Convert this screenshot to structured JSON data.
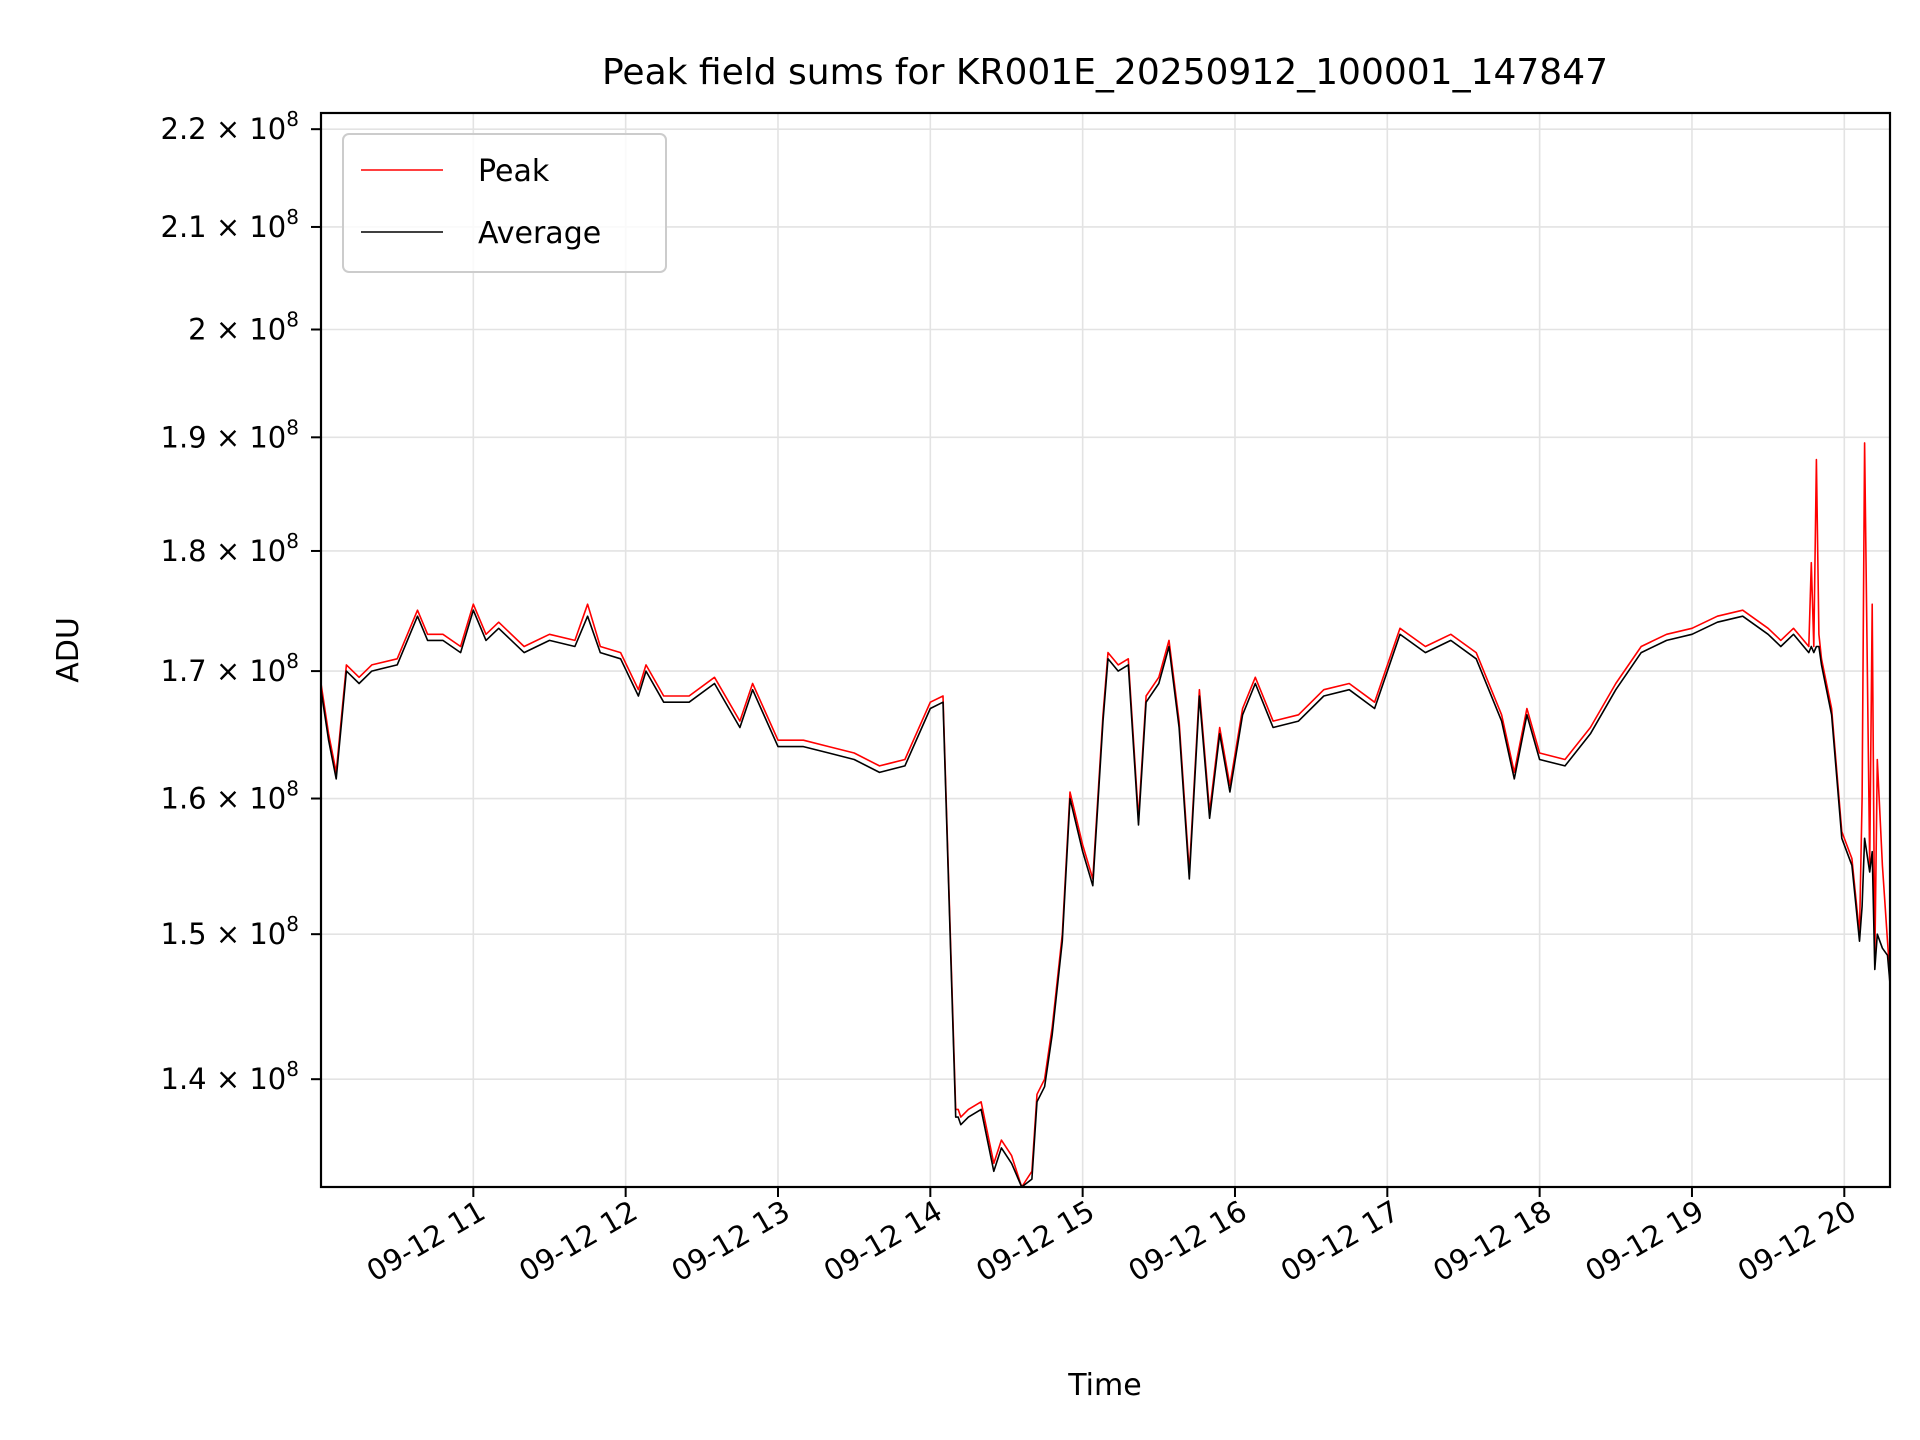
{
  "chart_data": {
    "type": "line",
    "title": "Peak field sums for KR001E_20250912_100001_147847",
    "xlabel": "Time",
    "ylabel": "ADU",
    "y_scale": "log",
    "grid": true,
    "legend_position": "top-left",
    "xlim": [
      "2025-09-12 10:00",
      "2025-09-12 20:18"
    ],
    "ylim": [
      133000000,
      221700000
    ],
    "x_ticks": [
      {
        "label": "09-12 11",
        "value": "2025-09-12 11:00"
      },
      {
        "label": "09-12 12",
        "value": "2025-09-12 12:00"
      },
      {
        "label": "09-12 13",
        "value": "2025-09-12 13:00"
      },
      {
        "label": "09-12 14",
        "value": "2025-09-12 14:00"
      },
      {
        "label": "09-12 15",
        "value": "2025-09-12 15:00"
      },
      {
        "label": "09-12 16",
        "value": "2025-09-12 16:00"
      },
      {
        "label": "09-12 17",
        "value": "2025-09-12 17:00"
      },
      {
        "label": "09-12 18",
        "value": "2025-09-12 18:00"
      },
      {
        "label": "09-12 19",
        "value": "2025-09-12 19:00"
      },
      {
        "label": "09-12 20",
        "value": "2025-09-12 20:00"
      }
    ],
    "y_ticks": [
      {
        "mantissa": "1.4",
        "exp": "8",
        "value": 140000000
      },
      {
        "mantissa": "1.5",
        "exp": "8",
        "value": 150000000
      },
      {
        "mantissa": "1.6",
        "exp": "8",
        "value": 160000000
      },
      {
        "mantissa": "1.7",
        "exp": "8",
        "value": 170000000
      },
      {
        "mantissa": "1.8",
        "exp": "8",
        "value": 180000000
      },
      {
        "mantissa": "1.9",
        "exp": "8",
        "value": 190000000
      },
      {
        "mantissa": "2",
        "exp": "8",
        "value": 200000000
      },
      {
        "mantissa": "2.1",
        "exp": "8",
        "value": 210000000
      },
      {
        "mantissa": "2.2",
        "exp": "8",
        "value": 220000000
      }
    ],
    "series": [
      {
        "name": "Peak",
        "color": "#ff0000",
        "x": [
          "2025-09-12 10:00",
          "2025-09-12 10:03",
          "2025-09-12 10:06",
          "2025-09-12 10:10",
          "2025-09-12 10:15",
          "2025-09-12 10:20",
          "2025-09-12 10:30",
          "2025-09-12 10:38",
          "2025-09-12 10:42",
          "2025-09-12 10:48",
          "2025-09-12 10:55",
          "2025-09-12 11:00",
          "2025-09-12 11:05",
          "2025-09-12 11:10",
          "2025-09-12 11:20",
          "2025-09-12 11:30",
          "2025-09-12 11:40",
          "2025-09-12 11:45",
          "2025-09-12 11:50",
          "2025-09-12 11:58",
          "2025-09-12 12:05",
          "2025-09-12 12:08",
          "2025-09-12 12:15",
          "2025-09-12 12:25",
          "2025-09-12 12:35",
          "2025-09-12 12:45",
          "2025-09-12 12:50",
          "2025-09-12 13:00",
          "2025-09-12 13:10",
          "2025-09-12 13:20",
          "2025-09-12 13:30",
          "2025-09-12 13:40",
          "2025-09-12 13:50",
          "2025-09-12 14:00",
          "2025-09-12 14:05",
          "2025-09-12 14:10",
          "2025-09-12 14:11",
          "2025-09-12 14:12",
          "2025-09-12 14:15",
          "2025-09-12 14:20",
          "2025-09-12 14:25",
          "2025-09-12 14:28",
          "2025-09-12 14:32",
          "2025-09-12 14:36",
          "2025-09-12 14:40",
          "2025-09-12 14:42",
          "2025-09-12 14:45",
          "2025-09-12 14:48",
          "2025-09-12 14:52",
          "2025-09-12 14:55",
          "2025-09-12 15:00",
          "2025-09-12 15:04",
          "2025-09-12 15:08",
          "2025-09-12 15:10",
          "2025-09-12 15:14",
          "2025-09-12 15:18",
          "2025-09-12 15:22",
          "2025-09-12 15:25",
          "2025-09-12 15:30",
          "2025-09-12 15:34",
          "2025-09-12 15:38",
          "2025-09-12 15:42",
          "2025-09-12 15:46",
          "2025-09-12 15:50",
          "2025-09-12 15:54",
          "2025-09-12 15:58",
          "2025-09-12 16:03",
          "2025-09-12 16:08",
          "2025-09-12 16:15",
          "2025-09-12 16:25",
          "2025-09-12 16:35",
          "2025-09-12 16:45",
          "2025-09-12 16:55",
          "2025-09-12 17:05",
          "2025-09-12 17:15",
          "2025-09-12 17:25",
          "2025-09-12 17:35",
          "2025-09-12 17:45",
          "2025-09-12 17:50",
          "2025-09-12 17:55",
          "2025-09-12 18:00",
          "2025-09-12 18:10",
          "2025-09-12 18:20",
          "2025-09-12 18:30",
          "2025-09-12 18:40",
          "2025-09-12 18:50",
          "2025-09-12 19:00",
          "2025-09-12 19:10",
          "2025-09-12 19:20",
          "2025-09-12 19:30",
          "2025-09-12 19:35",
          "2025-09-12 19:40",
          "2025-09-12 19:46",
          "2025-09-12 19:47",
          "2025-09-12 19:48",
          "2025-09-12 19:49",
          "2025-09-12 19:50",
          "2025-09-12 19:51",
          "2025-09-12 19:52",
          "2025-09-12 19:55",
          "2025-09-12 19:59",
          "2025-09-12 20:03",
          "2025-09-12 20:06",
          "2025-09-12 20:07",
          "2025-09-12 20:08",
          "2025-09-12 20:10",
          "2025-09-12 20:11",
          "2025-09-12 20:12",
          "2025-09-12 20:13",
          "2025-09-12 20:15",
          "2025-09-12 20:17",
          "2025-09-12 20:18"
        ],
        "y": [
          169000000,
          165000000,
          162000000,
          170500000,
          169500000,
          170500000,
          171000000,
          175000000,
          173000000,
          173000000,
          172000000,
          175500000,
          173000000,
          174000000,
          172000000,
          173000000,
          172500000,
          175500000,
          172000000,
          171500000,
          168500000,
          170500000,
          168000000,
          168000000,
          169500000,
          166000000,
          169000000,
          164500000,
          164500000,
          164000000,
          163500000,
          162500000,
          163000000,
          167500000,
          168000000,
          138000000,
          138000000,
          137500000,
          138000000,
          138500000,
          134500000,
          136000000,
          135000000,
          133000000,
          134000000,
          139000000,
          140000000,
          143500000,
          150000000,
          160500000,
          156500000,
          154000000,
          166500000,
          171500000,
          170500000,
          171000000,
          158500000,
          168000000,
          169500000,
          172500000,
          166000000,
          154500000,
          168500000,
          159000000,
          165500000,
          161000000,
          167000000,
          169500000,
          166000000,
          166500000,
          168500000,
          169000000,
          167500000,
          173500000,
          172000000,
          173000000,
          171500000,
          166500000,
          162000000,
          167000000,
          163500000,
          163000000,
          165500000,
          169000000,
          172000000,
          173000000,
          173500000,
          174500000,
          175000000,
          173500000,
          172500000,
          173500000,
          172000000,
          179000000,
          172000000,
          188000000,
          173000000,
          171000000,
          170000000,
          167000000,
          157500000,
          155500000,
          150000000,
          160000000,
          189500000,
          155000000,
          175500000,
          148000000,
          163000000,
          155000000,
          149500000,
          147000000
        ],
        "label": "Peak"
      },
      {
        "name": "Average",
        "color": "#000000",
        "x": [
          "2025-09-12 10:00",
          "2025-09-12 10:03",
          "2025-09-12 10:06",
          "2025-09-12 10:10",
          "2025-09-12 10:15",
          "2025-09-12 10:20",
          "2025-09-12 10:30",
          "2025-09-12 10:38",
          "2025-09-12 10:42",
          "2025-09-12 10:48",
          "2025-09-12 10:55",
          "2025-09-12 11:00",
          "2025-09-12 11:05",
          "2025-09-12 11:10",
          "2025-09-12 11:20",
          "2025-09-12 11:30",
          "2025-09-12 11:40",
          "2025-09-12 11:45",
          "2025-09-12 11:50",
          "2025-09-12 11:58",
          "2025-09-12 12:05",
          "2025-09-12 12:08",
          "2025-09-12 12:15",
          "2025-09-12 12:25",
          "2025-09-12 12:35",
          "2025-09-12 12:45",
          "2025-09-12 12:50",
          "2025-09-12 13:00",
          "2025-09-12 13:10",
          "2025-09-12 13:20",
          "2025-09-12 13:30",
          "2025-09-12 13:40",
          "2025-09-12 13:50",
          "2025-09-12 14:00",
          "2025-09-12 14:05",
          "2025-09-12 14:10",
          "2025-09-12 14:11",
          "2025-09-12 14:12",
          "2025-09-12 14:15",
          "2025-09-12 14:20",
          "2025-09-12 14:25",
          "2025-09-12 14:28",
          "2025-09-12 14:32",
          "2025-09-12 14:36",
          "2025-09-12 14:40",
          "2025-09-12 14:42",
          "2025-09-12 14:45",
          "2025-09-12 14:48",
          "2025-09-12 14:52",
          "2025-09-12 14:55",
          "2025-09-12 15:00",
          "2025-09-12 15:04",
          "2025-09-12 15:08",
          "2025-09-12 15:10",
          "2025-09-12 15:14",
          "2025-09-12 15:18",
          "2025-09-12 15:22",
          "2025-09-12 15:25",
          "2025-09-12 15:30",
          "2025-09-12 15:34",
          "2025-09-12 15:38",
          "2025-09-12 15:42",
          "2025-09-12 15:46",
          "2025-09-12 15:50",
          "2025-09-12 15:54",
          "2025-09-12 15:58",
          "2025-09-12 16:03",
          "2025-09-12 16:08",
          "2025-09-12 16:15",
          "2025-09-12 16:25",
          "2025-09-12 16:35",
          "2025-09-12 16:45",
          "2025-09-12 16:55",
          "2025-09-12 17:05",
          "2025-09-12 17:15",
          "2025-09-12 17:25",
          "2025-09-12 17:35",
          "2025-09-12 17:45",
          "2025-09-12 17:50",
          "2025-09-12 17:55",
          "2025-09-12 18:00",
          "2025-09-12 18:10",
          "2025-09-12 18:20",
          "2025-09-12 18:30",
          "2025-09-12 18:40",
          "2025-09-12 18:50",
          "2025-09-12 19:00",
          "2025-09-12 19:10",
          "2025-09-12 19:20",
          "2025-09-12 19:30",
          "2025-09-12 19:35",
          "2025-09-12 19:40",
          "2025-09-12 19:46",
          "2025-09-12 19:47",
          "2025-09-12 19:48",
          "2025-09-12 19:49",
          "2025-09-12 19:50",
          "2025-09-12 19:51",
          "2025-09-12 19:52",
          "2025-09-12 19:55",
          "2025-09-12 19:59",
          "2025-09-12 20:03",
          "2025-09-12 20:06",
          "2025-09-12 20:07",
          "2025-09-12 20:08",
          "2025-09-12 20:10",
          "2025-09-12 20:11",
          "2025-09-12 20:12",
          "2025-09-12 20:13",
          "2025-09-12 20:15",
          "2025-09-12 20:17",
          "2025-09-12 20:18"
        ],
        "y": [
          168500000,
          164500000,
          161500000,
          170000000,
          169000000,
          170000000,
          170500000,
          174500000,
          172500000,
          172500000,
          171500000,
          175000000,
          172500000,
          173500000,
          171500000,
          172500000,
          172000000,
          174500000,
          171500000,
          171000000,
          168000000,
          170000000,
          167500000,
          167500000,
          169000000,
          165500000,
          168500000,
          164000000,
          164000000,
          163500000,
          163000000,
          162000000,
          162500000,
          167000000,
          167500000,
          137500000,
          137500000,
          137000000,
          137500000,
          138000000,
          134000000,
          135500000,
          134500000,
          132500000,
          133500000,
          138500000,
          139500000,
          143000000,
          149500000,
          160000000,
          156000000,
          153500000,
          166000000,
          171000000,
          170000000,
          170500000,
          158000000,
          167500000,
          169000000,
          172000000,
          165500000,
          154000000,
          168000000,
          158500000,
          165000000,
          160500000,
          166500000,
          169000000,
          165500000,
          166000000,
          168000000,
          168500000,
          167000000,
          173000000,
          171500000,
          172500000,
          171000000,
          166000000,
          161500000,
          166500000,
          163000000,
          162500000,
          165000000,
          168500000,
          171500000,
          172500000,
          173000000,
          174000000,
          174500000,
          173000000,
          172000000,
          173000000,
          171500000,
          172000000,
          171500000,
          172000000,
          172000000,
          170500000,
          169500000,
          166500000,
          157000000,
          155000000,
          149500000,
          152000000,
          157000000,
          154500000,
          156000000,
          147500000,
          150000000,
          149000000,
          148500000,
          146500000
        ],
        "label": "Average"
      }
    ]
  }
}
